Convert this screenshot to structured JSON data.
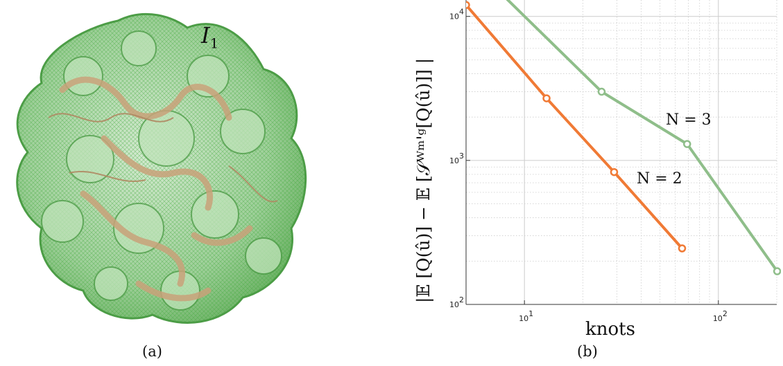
{
  "panel_a": {
    "label": "I",
    "label_sub": "1",
    "caption": "(a)",
    "colors": {
      "surface": "#8fc98a",
      "mesh": "#3fa83a",
      "ribbon": "#c9a27a"
    }
  },
  "panel_b": {
    "caption": "(b)",
    "ylabel": "|𝔼 [Q(û)] − 𝔼 [𝒮ᵂᵐ'ᵍ[Q(û)]] |",
    "xlabel": "knots"
  },
  "chart_data": {
    "type": "line",
    "xlabel": "knots",
    "ylabel": "|𝔼 [Q(û)] − 𝔼 [𝒮ᵂᵐ'ᵍ[Q(û)]] |",
    "xscale": "log",
    "yscale": "log",
    "xlim": [
      5,
      200
    ],
    "ylim": [
      100,
      13000
    ],
    "x_ticks": [
      {
        "value": 10,
        "label": "10",
        "exp": "1"
      },
      {
        "value": 100,
        "label": "10",
        "exp": "2"
      }
    ],
    "y_ticks": [
      {
        "value": 100,
        "label": "10",
        "exp": "2"
      },
      {
        "value": 1000,
        "label": "10",
        "exp": "3"
      },
      {
        "value": 10000,
        "label": "10",
        "exp": "4"
      }
    ],
    "grid": true,
    "series": [
      {
        "name": "N = 2",
        "color": "#f07a35",
        "x": [
          5,
          13,
          29,
          65
        ],
        "y": [
          12000,
          2700,
          830,
          245
        ]
      },
      {
        "name": "N = 3",
        "color": "#8fbe8a",
        "x": [
          5,
          25,
          69,
          201
        ],
        "y": [
          25000,
          3000,
          1300,
          170
        ]
      }
    ]
  }
}
